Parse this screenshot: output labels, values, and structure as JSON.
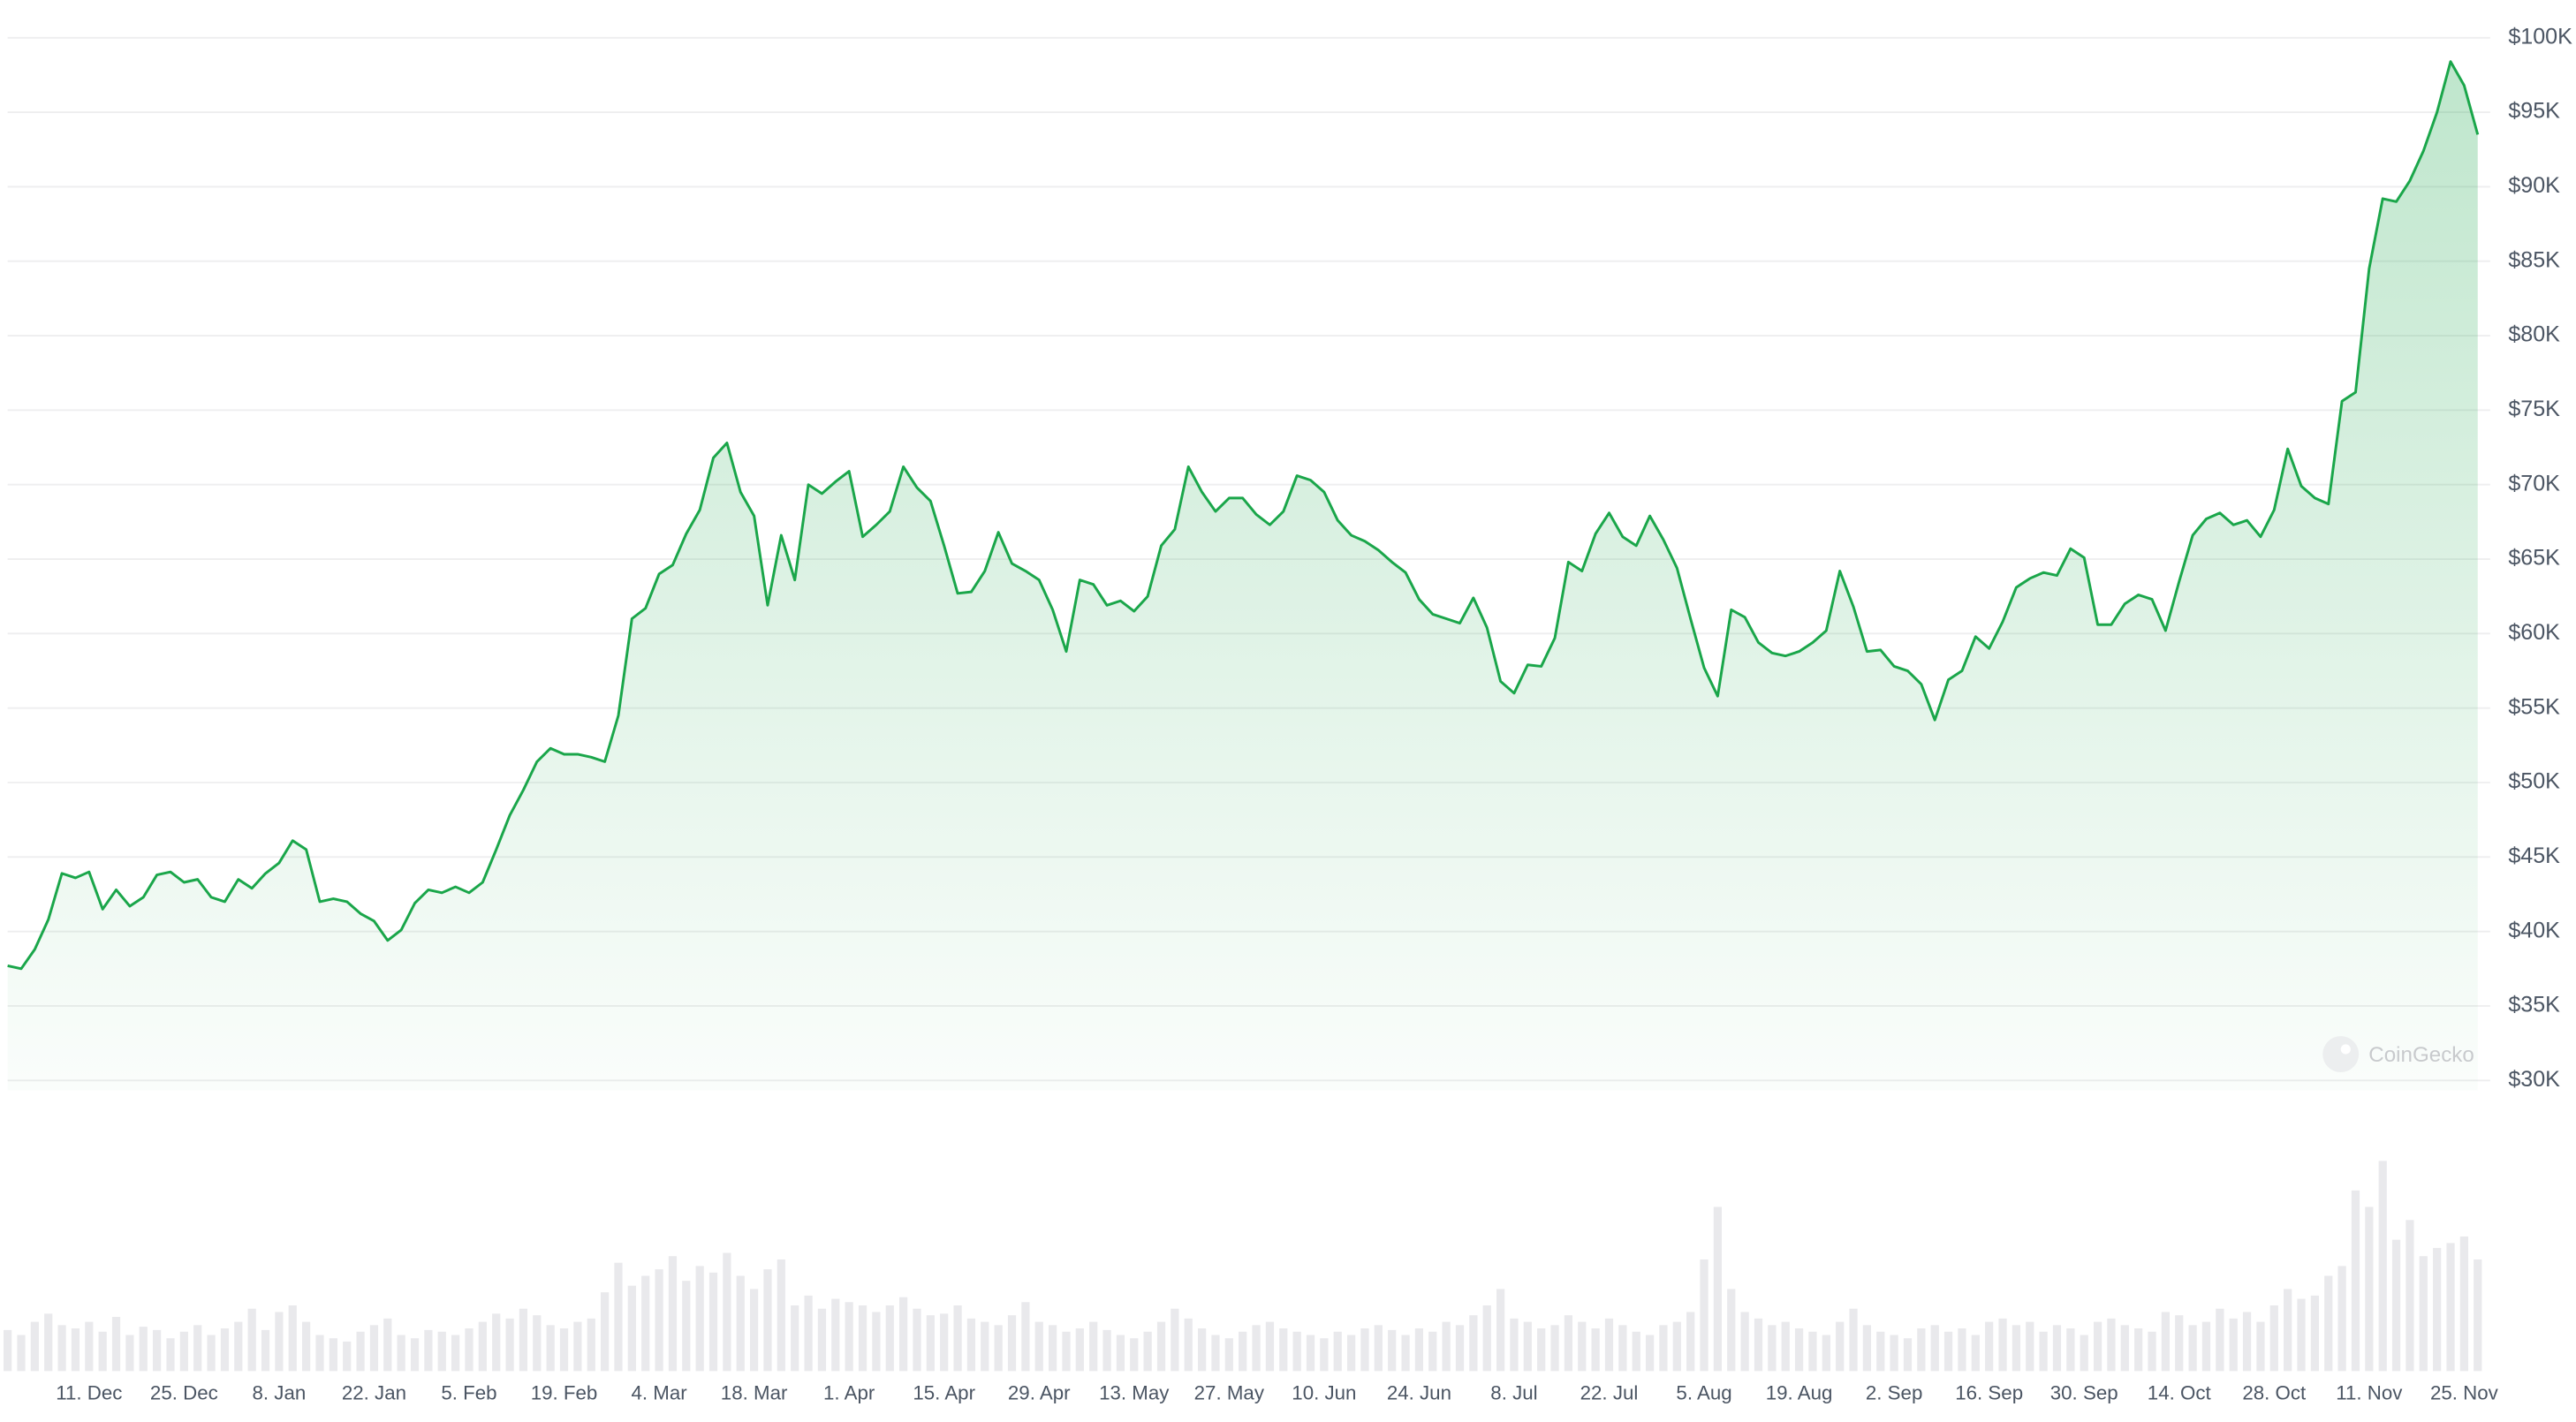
{
  "chart_data": {
    "type": "line",
    "watermark": "CoinGecko",
    "color": "#1aa64a",
    "volume_color": "#e9e9ec",
    "grid": true,
    "ylim": [
      30000,
      100000
    ],
    "yticks": [
      {
        "value": 30000,
        "label": "$30K"
      },
      {
        "value": 35000,
        "label": "$35K"
      },
      {
        "value": 40000,
        "label": "$40K"
      },
      {
        "value": 45000,
        "label": "$45K"
      },
      {
        "value": 50000,
        "label": "$50K"
      },
      {
        "value": 55000,
        "label": "$55K"
      },
      {
        "value": 60000,
        "label": "$60K"
      },
      {
        "value": 65000,
        "label": "$65K"
      },
      {
        "value": 70000,
        "label": "$70K"
      },
      {
        "value": 75000,
        "label": "$75K"
      },
      {
        "value": 80000,
        "label": "$80K"
      },
      {
        "value": 85000,
        "label": "$85K"
      },
      {
        "value": 90000,
        "label": "$90K"
      },
      {
        "value": 95000,
        "label": "$95K"
      },
      {
        "value": 100000,
        "label": "$100K"
      }
    ],
    "categories": [
      null,
      null,
      null,
      null,
      null,
      null,
      "11. Dec",
      null,
      null,
      null,
      null,
      null,
      null,
      "25. Dec",
      null,
      null,
      null,
      null,
      null,
      null,
      "8. Jan",
      null,
      null,
      null,
      null,
      null,
      null,
      "22. Jan",
      null,
      null,
      null,
      null,
      null,
      null,
      "5. Feb",
      null,
      null,
      null,
      null,
      null,
      null,
      "19. Feb",
      null,
      null,
      null,
      null,
      null,
      null,
      "4. Mar",
      null,
      null,
      null,
      null,
      null,
      null,
      "18. Mar",
      null,
      null,
      null,
      null,
      null,
      null,
      "1. Apr",
      null,
      null,
      null,
      null,
      null,
      null,
      "15. Apr",
      null,
      null,
      null,
      null,
      null,
      null,
      "29. Apr",
      null,
      null,
      null,
      null,
      null,
      null,
      "13. May",
      null,
      null,
      null,
      null,
      null,
      null,
      "27. May",
      null,
      null,
      null,
      null,
      null,
      null,
      "10. Jun",
      null,
      null,
      null,
      null,
      null,
      null,
      "24. Jun",
      null,
      null,
      null,
      null,
      null,
      null,
      "8. Jul",
      null,
      null,
      null,
      null,
      null,
      null,
      "22. Jul",
      null,
      null,
      null,
      null,
      null,
      null,
      "5. Aug",
      null,
      null,
      null,
      null,
      null,
      null,
      "19. Aug",
      null,
      null,
      null,
      null,
      null,
      null,
      "2. Sep",
      null,
      null,
      null,
      null,
      null,
      null,
      "16. Sep",
      null,
      null,
      null,
      null,
      null,
      null,
      "30. Sep",
      null,
      null,
      null,
      null,
      null,
      null,
      "14. Oct",
      null,
      null,
      null,
      null,
      null,
      null,
      "28. Oct",
      null,
      null,
      null,
      null,
      null,
      null,
      "11. Nov",
      null,
      null,
      null,
      null,
      null,
      null,
      "25. Nov",
      null
    ],
    "values": [
      37700,
      37500,
      38800,
      40800,
      43900,
      43600,
      44000,
      41500,
      42800,
      41700,
      42300,
      43800,
      44000,
      43300,
      43500,
      42300,
      42000,
      43500,
      42900,
      43900,
      44600,
      46100,
      45500,
      42000,
      42200,
      42000,
      41200,
      40700,
      39400,
      40100,
      41900,
      42800,
      42600,
      43000,
      42600,
      43300,
      45500,
      47800,
      49500,
      51400,
      52300,
      51900,
      51900,
      51700,
      51400,
      54500,
      61000,
      61700,
      64000,
      64600,
      66700,
      68300,
      71800,
      72800,
      69500,
      67900,
      61900,
      66600,
      63600,
      70000,
      69400,
      70200,
      70900,
      66500,
      67300,
      68200,
      71200,
      69800,
      68900,
      65900,
      62700,
      62800,
      64200,
      66800,
      64700,
      64200,
      63600,
      61600,
      58800,
      63600,
      63300,
      61900,
      62200,
      61500,
      62500,
      65900,
      67000,
      71200,
      69500,
      68200,
      69100,
      69100,
      68000,
      67300,
      68200,
      70600,
      70300,
      69500,
      67600,
      66600,
      66200,
      65600,
      64800,
      64100,
      62300,
      61300,
      61000,
      60700,
      62400,
      60400,
      56800,
      56000,
      57900,
      57800,
      59700,
      64800,
      64200,
      66700,
      68100,
      66500,
      65900,
      67900,
      66300,
      64400,
      61000,
      57700,
      55800,
      61600,
      61100,
      59400,
      58700,
      58500,
      58800,
      59400,
      60200,
      64200,
      61800,
      58800,
      58900,
      57800,
      57500,
      56600,
      54200,
      56900,
      57500,
      59800,
      59000,
      60800,
      63100,
      63700,
      64100,
      63900,
      65700,
      65100,
      60600,
      60600,
      62000,
      62600,
      62300,
      60200,
      63500,
      66600,
      67700,
      68100,
      67300,
      67600,
      66500,
      68300,
      72400,
      69900,
      69100,
      68700,
      75600,
      76200,
      84500,
      89200,
      89000,
      90400,
      92400,
      95000,
      98400,
      96800,
      93500
    ],
    "volumes": [
      25,
      22,
      30,
      35,
      28,
      26,
      30,
      24,
      33,
      22,
      27,
      25,
      20,
      24,
      28,
      22,
      26,
      30,
      38,
      25,
      36,
      40,
      30,
      22,
      20,
      18,
      24,
      28,
      32,
      22,
      20,
      25,
      24,
      22,
      26,
      30,
      35,
      32,
      38,
      34,
      28,
      26,
      30,
      32,
      48,
      66,
      52,
      58,
      62,
      70,
      55,
      64,
      60,
      72,
      58,
      50,
      62,
      68,
      40,
      46,
      38,
      44,
      42,
      40,
      36,
      40,
      45,
      38,
      34,
      35,
      40,
      32,
      30,
      28,
      34,
      42,
      30,
      28,
      24,
      26,
      30,
      25,
      22,
      20,
      24,
      30,
      38,
      32,
      26,
      22,
      20,
      24,
      28,
      30,
      26,
      24,
      22,
      20,
      24,
      22,
      26,
      28,
      25,
      22,
      26,
      24,
      30,
      28,
      34,
      40,
      50,
      32,
      30,
      26,
      28,
      34,
      30,
      26,
      32,
      28,
      24,
      22,
      28,
      30,
      36,
      68,
      100,
      50,
      36,
      32,
      28,
      30,
      26,
      24,
      22,
      30,
      38,
      28,
      24,
      22,
      20,
      26,
      28,
      24,
      26,
      22,
      30,
      32,
      28,
      30,
      24,
      28,
      26,
      22,
      30,
      32,
      28,
      26,
      24,
      36,
      34,
      28,
      30,
      38,
      32,
      36,
      30,
      40,
      50,
      44,
      46,
      58,
      64,
      110,
      100,
      128,
      80,
      92,
      70,
      75,
      78,
      82,
      68
    ]
  }
}
